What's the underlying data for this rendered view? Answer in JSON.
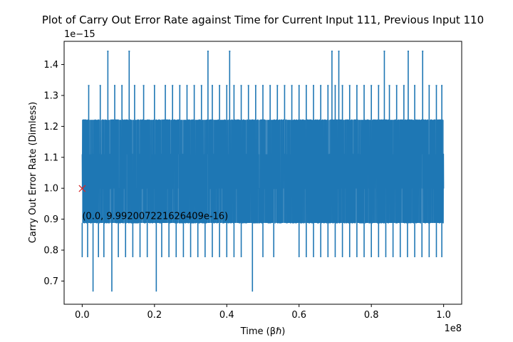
{
  "chart_data": {
    "type": "line",
    "title": "Plot of Carry Out Error Rate against Time for Current Input 111, Previous Input 110",
    "xlabel": "Time (βℏ)",
    "ylabel": "Carry Out Error Rate (Dimless)",
    "x_scale_label": "1e8",
    "y_scale_label": "1e−15",
    "xlim": [
      -0.05,
      1.05
    ],
    "ylim": [
      0.625,
      1.475
    ],
    "x_ticks": [
      0.0,
      0.2,
      0.4,
      0.6,
      0.8,
      1.0
    ],
    "x_tick_labels": [
      "0.0",
      "0.2",
      "0.4",
      "0.6",
      "0.8",
      "1.0"
    ],
    "y_ticks": [
      0.7,
      0.8,
      0.9,
      1.0,
      1.1,
      1.2,
      1.3,
      1.4
    ],
    "y_tick_labels": [
      "0.7",
      "0.8",
      "0.9",
      "1.0",
      "1.1",
      "1.2",
      "1.3",
      "1.4"
    ],
    "grid": false,
    "series": [
      {
        "color": "#1f77b4",
        "band_levels": [
          0.888,
          0.999,
          1.11,
          1.221
        ],
        "spike_high": [
          {
            "x": 0.018,
            "y": 1.332
          },
          {
            "x": 0.05,
            "y": 1.332
          },
          {
            "x": 0.071,
            "y": 1.443
          },
          {
            "x": 0.09,
            "y": 1.332
          },
          {
            "x": 0.11,
            "y": 1.332
          },
          {
            "x": 0.13,
            "y": 1.443
          },
          {
            "x": 0.145,
            "y": 1.332
          },
          {
            "x": 0.17,
            "y": 1.332
          },
          {
            "x": 0.2,
            "y": 1.332
          },
          {
            "x": 0.23,
            "y": 1.332
          },
          {
            "x": 0.25,
            "y": 1.332
          },
          {
            "x": 0.27,
            "y": 1.332
          },
          {
            "x": 0.29,
            "y": 1.332
          },
          {
            "x": 0.31,
            "y": 1.332
          },
          {
            "x": 0.33,
            "y": 1.332
          },
          {
            "x": 0.348,
            "y": 1.443
          },
          {
            "x": 0.36,
            "y": 1.332
          },
          {
            "x": 0.38,
            "y": 1.332
          },
          {
            "x": 0.4,
            "y": 1.332
          },
          {
            "x": 0.408,
            "y": 1.443
          },
          {
            "x": 0.42,
            "y": 1.332
          },
          {
            "x": 0.44,
            "y": 1.332
          },
          {
            "x": 0.46,
            "y": 1.332
          },
          {
            "x": 0.48,
            "y": 1.332
          },
          {
            "x": 0.5,
            "y": 1.332
          },
          {
            "x": 0.52,
            "y": 1.332
          },
          {
            "x": 0.54,
            "y": 1.332
          },
          {
            "x": 0.56,
            "y": 1.332
          },
          {
            "x": 0.58,
            "y": 1.332
          },
          {
            "x": 0.6,
            "y": 1.332
          },
          {
            "x": 0.62,
            "y": 1.332
          },
          {
            "x": 0.64,
            "y": 1.332
          },
          {
            "x": 0.66,
            "y": 1.332
          },
          {
            "x": 0.68,
            "y": 1.332
          },
          {
            "x": 0.691,
            "y": 1.443
          },
          {
            "x": 0.7,
            "y": 1.332
          },
          {
            "x": 0.71,
            "y": 1.443
          },
          {
            "x": 0.72,
            "y": 1.332
          },
          {
            "x": 0.74,
            "y": 1.332
          },
          {
            "x": 0.76,
            "y": 1.332
          },
          {
            "x": 0.78,
            "y": 1.332
          },
          {
            "x": 0.8,
            "y": 1.332
          },
          {
            "x": 0.82,
            "y": 1.332
          },
          {
            "x": 0.836,
            "y": 1.443
          },
          {
            "x": 0.85,
            "y": 1.332
          },
          {
            "x": 0.87,
            "y": 1.332
          },
          {
            "x": 0.89,
            "y": 1.332
          },
          {
            "x": 0.902,
            "y": 1.443
          },
          {
            "x": 0.92,
            "y": 1.332
          },
          {
            "x": 0.942,
            "y": 1.443
          },
          {
            "x": 0.96,
            "y": 1.332
          },
          {
            "x": 0.98,
            "y": 1.332
          },
          {
            "x": 0.995,
            "y": 1.332
          }
        ],
        "spike_low": [
          {
            "x": 0.0,
            "y": 0.777
          },
          {
            "x": 0.015,
            "y": 0.777
          },
          {
            "x": 0.03,
            "y": 0.666
          },
          {
            "x": 0.045,
            "y": 0.777
          },
          {
            "x": 0.06,
            "y": 0.777
          },
          {
            "x": 0.082,
            "y": 0.666
          },
          {
            "x": 0.1,
            "y": 0.777
          },
          {
            "x": 0.12,
            "y": 0.777
          },
          {
            "x": 0.14,
            "y": 0.777
          },
          {
            "x": 0.16,
            "y": 0.777
          },
          {
            "x": 0.18,
            "y": 0.777
          },
          {
            "x": 0.205,
            "y": 0.666
          },
          {
            "x": 0.22,
            "y": 0.777
          },
          {
            "x": 0.24,
            "y": 0.777
          },
          {
            "x": 0.26,
            "y": 0.777
          },
          {
            "x": 0.28,
            "y": 0.777
          },
          {
            "x": 0.3,
            "y": 0.777
          },
          {
            "x": 0.32,
            "y": 0.777
          },
          {
            "x": 0.34,
            "y": 0.777
          },
          {
            "x": 0.36,
            "y": 0.777
          },
          {
            "x": 0.38,
            "y": 0.777
          },
          {
            "x": 0.4,
            "y": 0.777
          },
          {
            "x": 0.42,
            "y": 0.777
          },
          {
            "x": 0.44,
            "y": 0.777
          },
          {
            "x": 0.471,
            "y": 0.666
          },
          {
            "x": 0.5,
            "y": 0.777
          },
          {
            "x": 0.53,
            "y": 0.777
          },
          {
            "x": 0.6,
            "y": 0.777
          },
          {
            "x": 0.62,
            "y": 0.777
          },
          {
            "x": 0.64,
            "y": 0.777
          },
          {
            "x": 0.66,
            "y": 0.777
          },
          {
            "x": 0.68,
            "y": 0.777
          },
          {
            "x": 0.7,
            "y": 0.777
          },
          {
            "x": 0.72,
            "y": 0.777
          },
          {
            "x": 0.74,
            "y": 0.777
          },
          {
            "x": 0.76,
            "y": 0.777
          },
          {
            "x": 0.78,
            "y": 0.777
          },
          {
            "x": 0.8,
            "y": 0.777
          },
          {
            "x": 0.82,
            "y": 0.777
          },
          {
            "x": 0.84,
            "y": 0.777
          },
          {
            "x": 0.86,
            "y": 0.777
          },
          {
            "x": 0.88,
            "y": 0.777
          },
          {
            "x": 0.9,
            "y": 0.777
          },
          {
            "x": 0.92,
            "y": 0.777
          },
          {
            "x": 0.94,
            "y": 0.777
          },
          {
            "x": 0.96,
            "y": 0.777
          },
          {
            "x": 0.98,
            "y": 0.777
          },
          {
            "x": 0.995,
            "y": 0.777
          }
        ]
      }
    ],
    "marker": {
      "x": 0.0,
      "y": 0.9992007221626409,
      "symbol": "x",
      "color": "#d62728",
      "label": "(0.0, 9.992007221626409e-16)"
    }
  }
}
